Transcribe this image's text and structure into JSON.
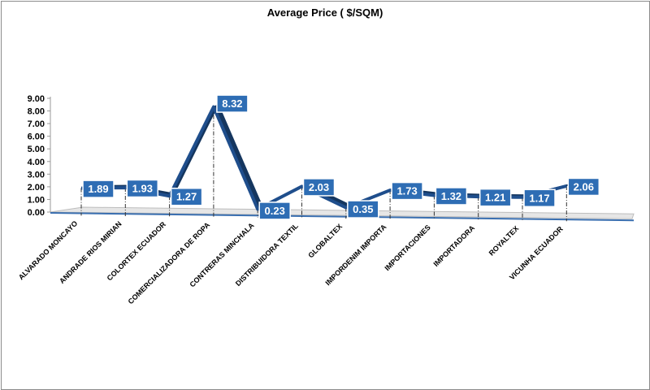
{
  "chart_data": {
    "type": "line",
    "title": "Average Price ( $/SQM)",
    "xlabel": "",
    "ylabel": "",
    "ylim": [
      0,
      9
    ],
    "yticks": [
      "0.00",
      "1.00",
      "2.00",
      "3.00",
      "4.00",
      "5.00",
      "6.00",
      "7.00",
      "8.00",
      "9.00"
    ],
    "categories": [
      "ALVARADO MONCAYO",
      "ANDRADE RIOS MIRIAN",
      "COLORTEX ECUADOR",
      "COMERCIALIZADORA DE ROPA",
      "CONTRERAS MINCHALA",
      "DISTRIBUIDORA TEXTIL",
      "GLOBALTEX",
      "IMPORDENIM IMPORTA",
      "IMPORTACIONES",
      "IMPORTADORA",
      "ROYALTEX",
      "VICUNHA ECUADOR"
    ],
    "series": [
      {
        "values": [
          1.89,
          1.93,
          1.27,
          8.32,
          0.23,
          2.03,
          0.35,
          1.73,
          1.32,
          1.21,
          1.17,
          2.06
        ],
        "labels": [
          "1.89",
          "1.93",
          "1.27",
          "8.32",
          "0.23",
          "2.03",
          "0.35",
          "1.73",
          "1.32",
          "1.21",
          "1.17",
          "2.06"
        ]
      }
    ],
    "grid": false,
    "legend": "none",
    "colors": {
      "line": "#1f4e8c",
      "line_dark": "#15365f",
      "label_bg": "#2e6db4",
      "label_border": "#ffffff",
      "floor": "#e6e6e6",
      "floor_edge": "#3a6fb0"
    }
  }
}
